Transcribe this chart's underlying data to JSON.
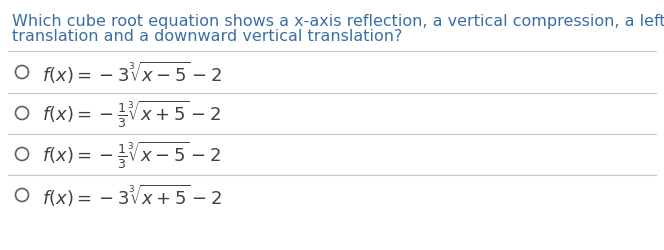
{
  "background_color": "#ffffff",
  "question_line1": "Which cube root equation shows a x-axis reflection, a vertical compression, a left horizontal",
  "question_line2": "translation and a downward vertical translation?",
  "question_color": "#3a6ea5",
  "question_fontsize": 11.5,
  "option_color": "#404040",
  "option_fontsize": 13.0,
  "circle_color": "#606060",
  "line_color": "#c8c8c8",
  "line_width": 0.8,
  "options_latex": [
    "$f(x) = -3\\sqrt[3]{x-5} - 2$",
    "$f(x) = -\\frac{1}{3}\\sqrt[3]{x+5} - 2$",
    "$f(x) = -\\frac{1}{3}\\sqrt[3]{x-5} - 2$",
    "$f(x) = -3\\sqrt[3]{x+5} - 2$"
  ]
}
